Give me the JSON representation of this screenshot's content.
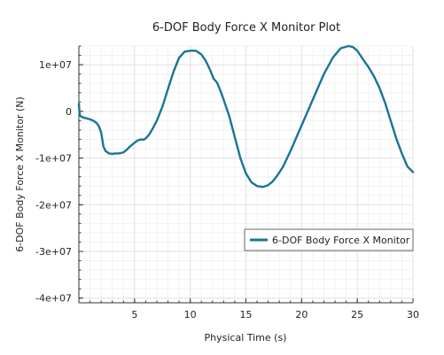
{
  "chart_data": {
    "type": "line",
    "title": "6-DOF Body Force X Monitor Plot",
    "xlabel": "Physical Time (s)",
    "ylabel": "6-DOF Body Force X Monitor (N)",
    "xlim": [
      0,
      30
    ],
    "ylim": [
      -41000000,
      14000000
    ],
    "x_ticks": [
      5,
      10,
      15,
      20,
      25,
      30
    ],
    "x_tick_labels": [
      "5",
      "10",
      "15",
      "20",
      "25",
      "30"
    ],
    "y_ticks": [
      10000000,
      0,
      -10000000,
      -20000000,
      -30000000,
      -40000000
    ],
    "y_tick_labels": [
      "1e+07",
      "0",
      "-1e+07",
      "-2e+07",
      "-3e+07",
      "-4e+07"
    ],
    "grid": true,
    "legend_position": "lower-right",
    "series_color": "#1a7496",
    "series": [
      {
        "name": "6-DOF Body Force X Monitor",
        "x": [
          0,
          0.05,
          0.1,
          0.2,
          0.4,
          0.7,
          1.0,
          1.3,
          1.6,
          1.8,
          2.0,
          2.1,
          2.2,
          2.4,
          2.7,
          3.0,
          3.3,
          3.6,
          4.0,
          4.3,
          4.6,
          5.0,
          5.3,
          5.6,
          5.8,
          6.0,
          6.3,
          6.6,
          7.0,
          7.5,
          8.0,
          8.5,
          9.0,
          9.5,
          10.0,
          10.5,
          11.0,
          11.4,
          11.8,
          12.1,
          12.4,
          12.7,
          13.0,
          13.5,
          14.0,
          14.5,
          15.0,
          15.5,
          16.0,
          16.5,
          17.0,
          17.4,
          17.8,
          18.3,
          19.0,
          20.0,
          21.0,
          22.0,
          22.8,
          23.5,
          24.2,
          24.6,
          25.0,
          25.5,
          26.0,
          26.5,
          27.0,
          27.5,
          28.0,
          28.5,
          29.0,
          29.5,
          30.0
        ],
        "y": [
          1600000,
          0,
          -900000,
          -1100000,
          -1300000,
          -1500000,
          -1700000,
          -2000000,
          -2500000,
          -3200000,
          -4500000,
          -6000000,
          -7500000,
          -8500000,
          -9000000,
          -9100000,
          -9000000,
          -9000000,
          -8800000,
          -8200000,
          -7500000,
          -6700000,
          -6200000,
          -6000000,
          -6100000,
          -5800000,
          -5000000,
          -3800000,
          -2000000,
          1000000,
          4800000,
          8500000,
          11500000,
          12800000,
          13000000,
          13000000,
          12200000,
          10800000,
          8800000,
          7000000,
          6200000,
          4500000,
          2500000,
          -1000000,
          -5500000,
          -10000000,
          -13300000,
          -15200000,
          -16000000,
          -16200000,
          -15800000,
          -15000000,
          -13800000,
          -12000000,
          -8500000,
          -3000000,
          2500000,
          8000000,
          11500000,
          13500000,
          14000000,
          13800000,
          13000000,
          11200000,
          9500000,
          7500000,
          5000000,
          1800000,
          -2000000,
          -5800000,
          -9000000,
          -11800000,
          -13000000
        ]
      }
    ]
  }
}
